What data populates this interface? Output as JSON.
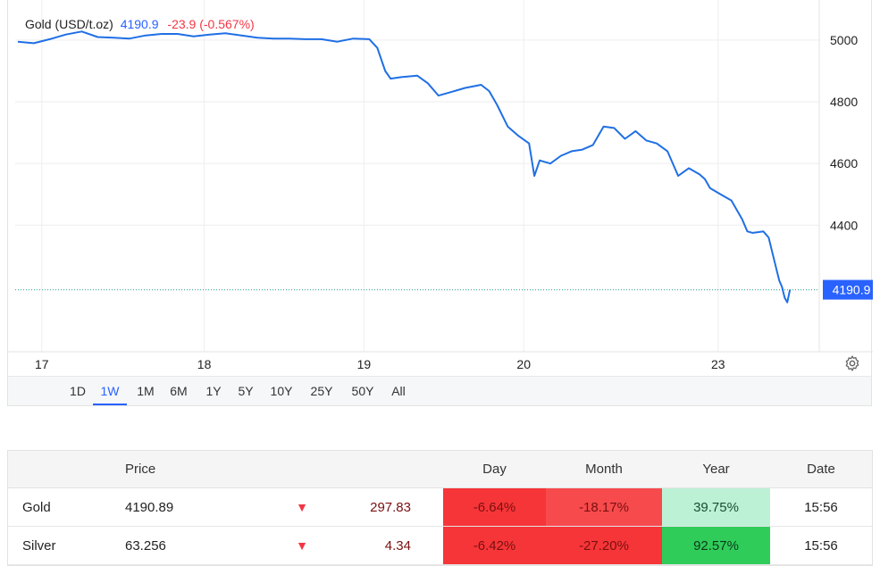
{
  "legend": {
    "name": "Gold (USD/t.oz)",
    "price": "4190.9",
    "change": "-23.9 (-0.567%)"
  },
  "colors": {
    "line": "#1f6fe5",
    "price_tag": "#2962ff",
    "negative": "#f23645"
  },
  "price_tag": "4190.9",
  "range_buttons": [
    "1D",
    "1W",
    "1M",
    "6M",
    "1Y",
    "5Y",
    "10Y",
    "25Y",
    "50Y",
    "All"
  ],
  "active_range": "1W",
  "settings_icon": "gear-icon",
  "chart_data": {
    "type": "line",
    "title": "Gold (USD/t.oz)",
    "xlabel": "",
    "ylabel": "",
    "x_ticks": [
      "17",
      "18",
      "19",
      "20",
      "23"
    ],
    "y_ticks": [
      4400,
      4600,
      4800,
      5000
    ],
    "ylim": [
      3990,
      5130
    ],
    "grid": true,
    "last_value": 4190.9,
    "series": [
      {
        "name": "Gold (USD/t.oz)",
        "points": [
          [
            0.0,
            4995
          ],
          [
            0.3,
            4990
          ],
          [
            0.6,
            5003
          ],
          [
            0.9,
            5018
          ],
          [
            1.2,
            5028
          ],
          [
            1.5,
            5010
          ],
          [
            1.8,
            5008
          ],
          [
            2.1,
            5005
          ],
          [
            2.4,
            5015
          ],
          [
            2.7,
            5020
          ],
          [
            3.0,
            5020
          ],
          [
            3.3,
            5012
          ],
          [
            3.6,
            5018
          ],
          [
            3.9,
            5022
          ],
          [
            4.2,
            5015
          ],
          [
            4.5,
            5008
          ],
          [
            4.8,
            5005
          ],
          [
            5.1,
            5005
          ],
          [
            5.4,
            5003
          ],
          [
            5.7,
            5003
          ],
          [
            6.0,
            4995
          ],
          [
            6.3,
            5005
          ],
          [
            6.6,
            5003
          ],
          [
            6.75,
            4975
          ],
          [
            6.9,
            4900
          ],
          [
            7.0,
            4875
          ],
          [
            7.2,
            4880
          ],
          [
            7.5,
            4885
          ],
          [
            7.7,
            4860
          ],
          [
            7.9,
            4820
          ],
          [
            8.1,
            4830
          ],
          [
            8.4,
            4845
          ],
          [
            8.7,
            4855
          ],
          [
            8.85,
            4835
          ],
          [
            9.0,
            4790
          ],
          [
            9.2,
            4720
          ],
          [
            9.4,
            4690
          ],
          [
            9.6,
            4665
          ],
          [
            9.7,
            4560
          ],
          [
            9.8,
            4610
          ],
          [
            10.0,
            4600
          ],
          [
            10.2,
            4625
          ],
          [
            10.4,
            4640
          ],
          [
            10.6,
            4645
          ],
          [
            10.8,
            4660
          ],
          [
            11.0,
            4720
          ],
          [
            11.2,
            4715
          ],
          [
            11.4,
            4680
          ],
          [
            11.6,
            4705
          ],
          [
            11.8,
            4675
          ],
          [
            12.0,
            4665
          ],
          [
            12.2,
            4640
          ],
          [
            12.4,
            4560
          ],
          [
            12.6,
            4585
          ],
          [
            12.8,
            4565
          ],
          [
            12.9,
            4550
          ],
          [
            13.0,
            4520
          ],
          [
            13.2,
            4500
          ],
          [
            13.4,
            4480
          ],
          [
            13.5,
            4450
          ],
          [
            13.6,
            4420
          ],
          [
            13.7,
            4380
          ],
          [
            13.8,
            4375
          ],
          [
            14.0,
            4380
          ],
          [
            14.1,
            4360
          ],
          [
            14.2,
            4290
          ],
          [
            14.3,
            4220
          ],
          [
            14.35,
            4200
          ],
          [
            14.4,
            4165
          ],
          [
            14.45,
            4150
          ],
          [
            14.5,
            4190.9
          ]
        ]
      }
    ]
  },
  "table": {
    "headers": [
      "",
      "Price",
      "",
      "",
      "Day",
      "Month",
      "Year",
      "Date"
    ],
    "rows": [
      {
        "name": "Gold",
        "price": "4190.89",
        "arrow": "▼",
        "change": "297.83",
        "day": "-6.64%",
        "month": "-18.17%",
        "year": "39.75%",
        "date": "15:56"
      },
      {
        "name": "Silver",
        "price": "63.256",
        "arrow": "▼",
        "change": "4.34",
        "day": "-6.42%",
        "month": "-27.20%",
        "year": "92.57%",
        "date": "15:56"
      }
    ]
  }
}
